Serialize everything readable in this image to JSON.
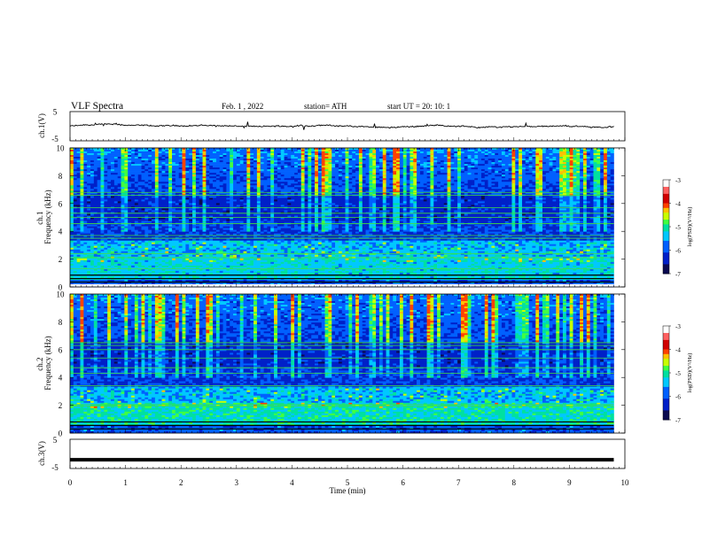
{
  "header": {
    "title": "VLF  Spectra",
    "date": "Feb. 1  , 2022",
    "station": "station= ATH",
    "start_ut": "start  UT  =   20: 10: 1"
  },
  "chart_data": [
    {
      "type": "line",
      "ylabel": "ch.1(V)",
      "ylim": [
        -5,
        5
      ],
      "y_ticks": [
        "5",
        "-5"
      ],
      "baseline": 0,
      "color": "#000000"
    },
    {
      "type": "heatmap",
      "ylabel": "ch.1\nFrequency  (kHz)",
      "ylim": [
        0,
        10
      ],
      "y_ticks": [
        "0",
        "2",
        "4",
        "6",
        "8",
        "10"
      ],
      "colorbar": {
        "label": "log(PSD)(V²/Hz)",
        "range": [
          -7,
          -3
        ],
        "ticks": [
          "-3",
          "-4",
          "-5",
          "-6",
          "-7"
        ]
      },
      "x_range_min": [
        0,
        9.8
      ]
    },
    {
      "type": "heatmap",
      "ylabel": "ch.2\nFrequency  (kHz)",
      "ylim": [
        0,
        10
      ],
      "y_ticks": [
        "0",
        "2",
        "4",
        "6",
        "8",
        "10"
      ],
      "colorbar": {
        "label": "log(PSD)(V²/Hz)",
        "range": [
          -7,
          -3
        ],
        "ticks": [
          "-3",
          "-4",
          "-5",
          "-6",
          "-7"
        ]
      },
      "x_range_min": [
        0,
        9.8
      ]
    },
    {
      "type": "line",
      "ylabel": "ch.3(V)",
      "ylim": [
        -5,
        5
      ],
      "y_ticks": [
        "5",
        "-5"
      ],
      "value": -2,
      "color": "#000000"
    }
  ],
  "x_axis": {
    "label": "Time  (min)",
    "xlim": [
      0,
      10
    ],
    "ticks": [
      "0",
      "1",
      "2",
      "3",
      "4",
      "5",
      "6",
      "7",
      "8",
      "9",
      "10"
    ]
  },
  "colors": {
    "colormap": [
      "#000000",
      "#0a0a50",
      "#0020c8",
      "#0060ff",
      "#00c8ff",
      "#00e0a0",
      "#40ff40",
      "#c8ff00",
      "#ffc000",
      "#ff4000",
      "#d00000",
      "#ffffff"
    ]
  }
}
